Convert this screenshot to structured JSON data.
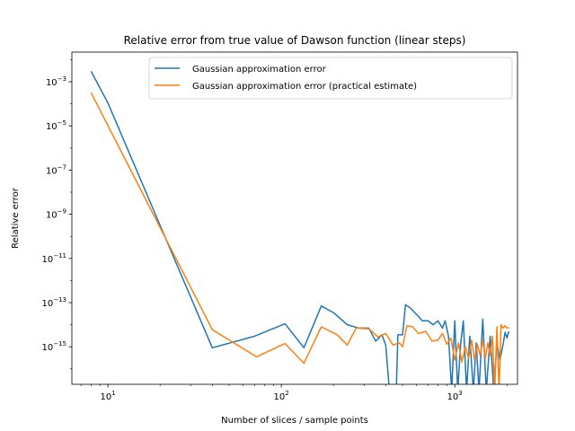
{
  "chart_data": {
    "type": "line",
    "title": "Relative error from true value of Dawson function (linear steps)",
    "xlabel": "Number of slices / sample points",
    "ylabel": "Relative error",
    "xscale": "log",
    "yscale": "log",
    "xlim": [
      6.2,
      2300
    ],
    "ylim": [
      2e-17,
      0.022
    ],
    "grid": false,
    "legend_position": "top-right",
    "x_ticks": [
      {
        "value": 10,
        "base": "10",
        "exp": "1"
      },
      {
        "value": 100,
        "base": "10",
        "exp": "2"
      },
      {
        "value": 1000,
        "base": "10",
        "exp": "3"
      }
    ],
    "y_ticks": [
      {
        "value": 0.001,
        "base": "10",
        "exp": "−3"
      },
      {
        "value": 1e-05,
        "base": "10",
        "exp": "−5"
      },
      {
        "value": 1e-07,
        "base": "10",
        "exp": "−7"
      },
      {
        "value": 1e-09,
        "base": "10",
        "exp": "−9"
      },
      {
        "value": 1e-11,
        "base": "10",
        "exp": "−11"
      },
      {
        "value": 1e-13,
        "base": "10",
        "exp": "−13"
      },
      {
        "value": 1e-15,
        "base": "10",
        "exp": "−15"
      }
    ],
    "series": [
      {
        "name": "Gaussian approximation error",
        "color": "#1f77b4",
        "points": [
          [
            8,
            0.003
          ],
          [
            10,
            0.00011
          ],
          [
            40,
            9e-16
          ],
          [
            70,
            3e-15
          ],
          [
            105,
            1.1e-14
          ],
          [
            135,
            9e-16
          ],
          [
            170,
            7e-14
          ],
          [
            200,
            3.5e-14
          ],
          [
            240,
            1e-14
          ],
          [
            280,
            7e-15
          ],
          [
            320,
            7e-15
          ],
          [
            350,
            1.8e-15
          ],
          [
            380,
            3.5e-15
          ],
          [
            400,
            1.2e-15
          ],
          [
            420,
            1e-17
          ],
          [
            460,
            1e-17
          ],
          [
            470,
            3.5e-15
          ],
          [
            500,
            3.5e-15
          ],
          [
            520,
            8e-14
          ],
          [
            550,
            6e-14
          ],
          [
            600,
            3e-14
          ],
          [
            650,
            1.5e-14
          ],
          [
            700,
            1.5e-14
          ],
          [
            750,
            1e-14
          ],
          [
            800,
            1.5e-14
          ],
          [
            850,
            7e-15
          ],
          [
            880,
            1.5e-14
          ],
          [
            920,
            3e-15
          ],
          [
            960,
            1e-17
          ],
          [
            1000,
            1.5e-14
          ],
          [
            1040,
            1e-17
          ],
          [
            1080,
            1.2e-15
          ],
          [
            1120,
            1.5e-14
          ],
          [
            1170,
            1e-17
          ],
          [
            1220,
            3e-15
          ],
          [
            1280,
            1e-17
          ],
          [
            1330,
            1.5e-15
          ],
          [
            1380,
            1e-17
          ],
          [
            1450,
            1.8e-14
          ],
          [
            1520,
            1e-17
          ],
          [
            1600,
            3e-15
          ],
          [
            1680,
            1e-17
          ],
          [
            1750,
            1.5e-15
          ],
          [
            1820,
            2.5e-16
          ],
          [
            1900,
            1.3e-15
          ],
          [
            1950,
            4.5e-15
          ],
          [
            2000,
            2.5e-15
          ],
          [
            2050,
            5e-15
          ]
        ]
      },
      {
        "name": "Gaussian approximation error (practical estimate)",
        "color": "#ff7f0e",
        "points": [
          [
            8,
            0.00032
          ],
          [
            40,
            6e-15
          ],
          [
            72,
            3.5e-16
          ],
          [
            105,
            1.4e-15
          ],
          [
            135,
            1.8e-16
          ],
          [
            170,
            8e-15
          ],
          [
            210,
            3.5e-15
          ],
          [
            240,
            1.2e-15
          ],
          [
            270,
            7e-15
          ],
          [
            320,
            6.5e-15
          ],
          [
            360,
            2.8e-15
          ],
          [
            400,
            4e-15
          ],
          [
            440,
            1.2e-15
          ],
          [
            480,
            1.5e-15
          ],
          [
            500,
            1e-15
          ],
          [
            530,
            9e-15
          ],
          [
            570,
            8e-15
          ],
          [
            620,
            4e-15
          ],
          [
            680,
            5e-15
          ],
          [
            740,
            1.8e-15
          ],
          [
            800,
            2e-15
          ],
          [
            850,
            4e-15
          ],
          [
            900,
            1.3e-15
          ],
          [
            950,
            2.5e-15
          ],
          [
            1000,
            2.5e-16
          ],
          [
            1050,
            1.5e-15
          ],
          [
            1100,
            2e-16
          ],
          [
            1150,
            1e-15
          ],
          [
            1200,
            3e-16
          ],
          [
            1250,
            2e-15
          ],
          [
            1300,
            2.5e-16
          ],
          [
            1350,
            1.3e-15
          ],
          [
            1400,
            4e-16
          ],
          [
            1450,
            2e-15
          ],
          [
            1500,
            3e-16
          ],
          [
            1550,
            1.5e-15
          ],
          [
            1600,
            4e-16
          ],
          [
            1650,
            3e-15
          ],
          [
            1700,
            1e-17
          ],
          [
            1750,
            8e-15
          ],
          [
            1800,
            1e-17
          ],
          [
            1850,
            1e-14
          ],
          [
            1900,
            7e-15
          ],
          [
            1950,
            9e-15
          ],
          [
            2000,
            7e-15
          ],
          [
            2050,
            7.5e-15
          ]
        ]
      }
    ]
  }
}
